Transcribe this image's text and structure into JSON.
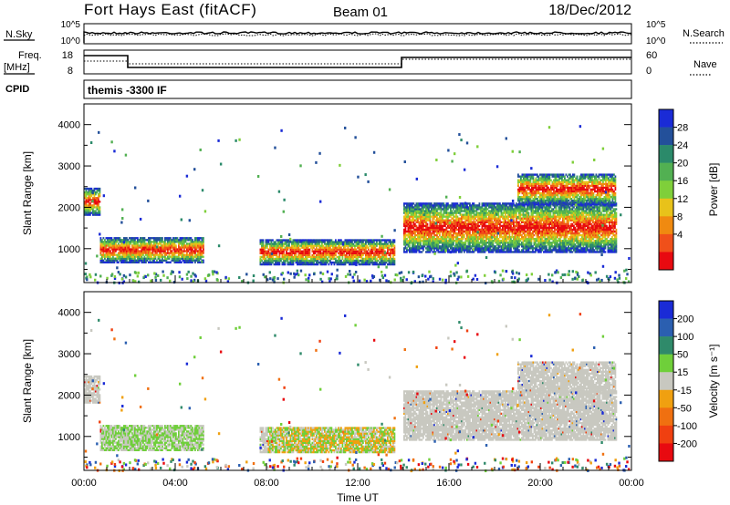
{
  "header": {
    "title": "Fort Hays East (fitACF)",
    "beam": "Beam 01",
    "date": "18/Dec/2012"
  },
  "status_panels": {
    "nsky_label": "N.Sky",
    "nsearch_label": "N.Search",
    "nsky_ticks": [
      "10^5",
      "10^0"
    ],
    "nsearch_ticks": [
      "10^5",
      "10^0"
    ],
    "freq_label": "Freq.",
    "freq_unit": "[MHz]",
    "freq_ticks": [
      "18",
      "8"
    ],
    "nave_label": "Nave",
    "nave_ticks": [
      "60",
      "0"
    ],
    "cpid_label": "CPID",
    "cpid_text": "themis -3300 IF"
  },
  "chart_data": [
    {
      "type": "heatmap",
      "name": "power",
      "ylabel": "Slant Range [km]",
      "xlabel": "",
      "xlim": [
        0,
        24
      ],
      "ylim": [
        180,
        4500
      ],
      "yticks": [
        "4000",
        "3000",
        "2000",
        "1000"
      ],
      "colorbar": {
        "label": "Power [dB]",
        "ticks": [
          "28",
          "24",
          "20",
          "16",
          "12",
          "8",
          "4"
        ],
        "colors": [
          "#1a2bd6",
          "#23509a",
          "#2b8a6a",
          "#52b052",
          "#7fcf3a",
          "#e8c21a",
          "#f08a10",
          "#f0501a",
          "#e80a10"
        ]
      },
      "echo_regions": [
        {
          "t0": 0.0,
          "t1": 0.7,
          "r0": 1800,
          "r1": 2450
        },
        {
          "t0": 0.7,
          "t1": 5.2,
          "r0": 650,
          "r1": 1250
        },
        {
          "t0": 7.7,
          "t1": 13.6,
          "r0": 600,
          "r1": 1200
        },
        {
          "t0": 14.0,
          "t1": 23.3,
          "r0": 900,
          "r1": 2100
        },
        {
          "t0": 19.0,
          "t1": 23.3,
          "r0": 2050,
          "r1": 2800
        }
      ]
    },
    {
      "type": "heatmap",
      "name": "velocity",
      "ylabel": "Slant Range [km]",
      "xlabel": "Time UT",
      "xlim": [
        0,
        24
      ],
      "ylim": [
        180,
        4500
      ],
      "yticks": [
        "4000",
        "3000",
        "2000",
        "1000"
      ],
      "xticks": [
        "00:00",
        "04:00",
        "08:00",
        "12:00",
        "16:00",
        "20:00",
        "00:00"
      ],
      "colorbar": {
        "label": "Velocity [m s⁻¹]",
        "ticks": [
          "200",
          "100",
          "50",
          "15",
          "-15",
          "-50",
          "-100",
          "-200"
        ],
        "colors": [
          "#1a2bd6",
          "#2b5fb0",
          "#2f8a6a",
          "#6fcf3a",
          "#c8c8c0",
          "#f0a010",
          "#f07010",
          "#f04010",
          "#e80a10"
        ]
      }
    }
  ]
}
